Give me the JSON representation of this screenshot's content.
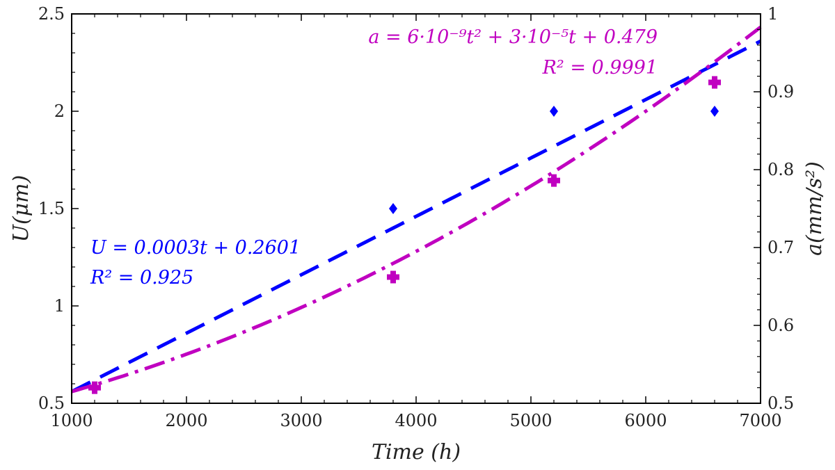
{
  "chart_data": {
    "type": "scatter",
    "xlabel": "Time (h)",
    "ylabel_left": "U(μm)",
    "ylabel_right": "a(mm/s²)",
    "xlim": [
      1000,
      7000
    ],
    "ylim_left": [
      0.5,
      2.5
    ],
    "ylim_right": [
      0.5,
      1.0
    ],
    "x_ticks": [
      "1000",
      "2000",
      "3000",
      "4000",
      "5000",
      "6000",
      "7000"
    ],
    "y_left_ticks": [
      "0.5",
      "1",
      "1.5",
      "2",
      "2.5"
    ],
    "y_right_ticks": [
      "0.5",
      "0.6",
      "0.7",
      "0.8",
      "0.9",
      "1"
    ],
    "grid": false,
    "series": [
      {
        "axis": "left",
        "color": "#0000ff",
        "marker": "diamond",
        "points": [
          {
            "x": 1200,
            "y": 0.58
          },
          {
            "x": 3800,
            "y": 1.5
          },
          {
            "x": 5200,
            "y": 2.0
          },
          {
            "x": 6600,
            "y": 2.0
          }
        ],
        "fit": {
          "kind": "linear",
          "slope": 0.0003,
          "intercept": 0.2601,
          "line_style": "dashed"
        }
      },
      {
        "axis": "right",
        "color": "#c000c0",
        "marker": "plus",
        "points": [
          {
            "x": 1200,
            "y": 0.52
          },
          {
            "x": 3800,
            "y": 0.662
          },
          {
            "x": 5200,
            "y": 0.786
          },
          {
            "x": 6600,
            "y": 0.912
          }
        ],
        "fit": {
          "kind": "quadratic",
          "a2": 6e-09,
          "a1": 3e-05,
          "a0": 0.479,
          "line_style": "dashdot"
        }
      }
    ],
    "annotations": {
      "blue_eq": "U = 0.0003t + 0.2601",
      "blue_r2": "R² = 0.925",
      "magenta_eq": "a = 6·10⁻⁹t² + 3·10⁻⁵t + 0.479",
      "magenta_r2": "R² = 0.9991"
    }
  }
}
